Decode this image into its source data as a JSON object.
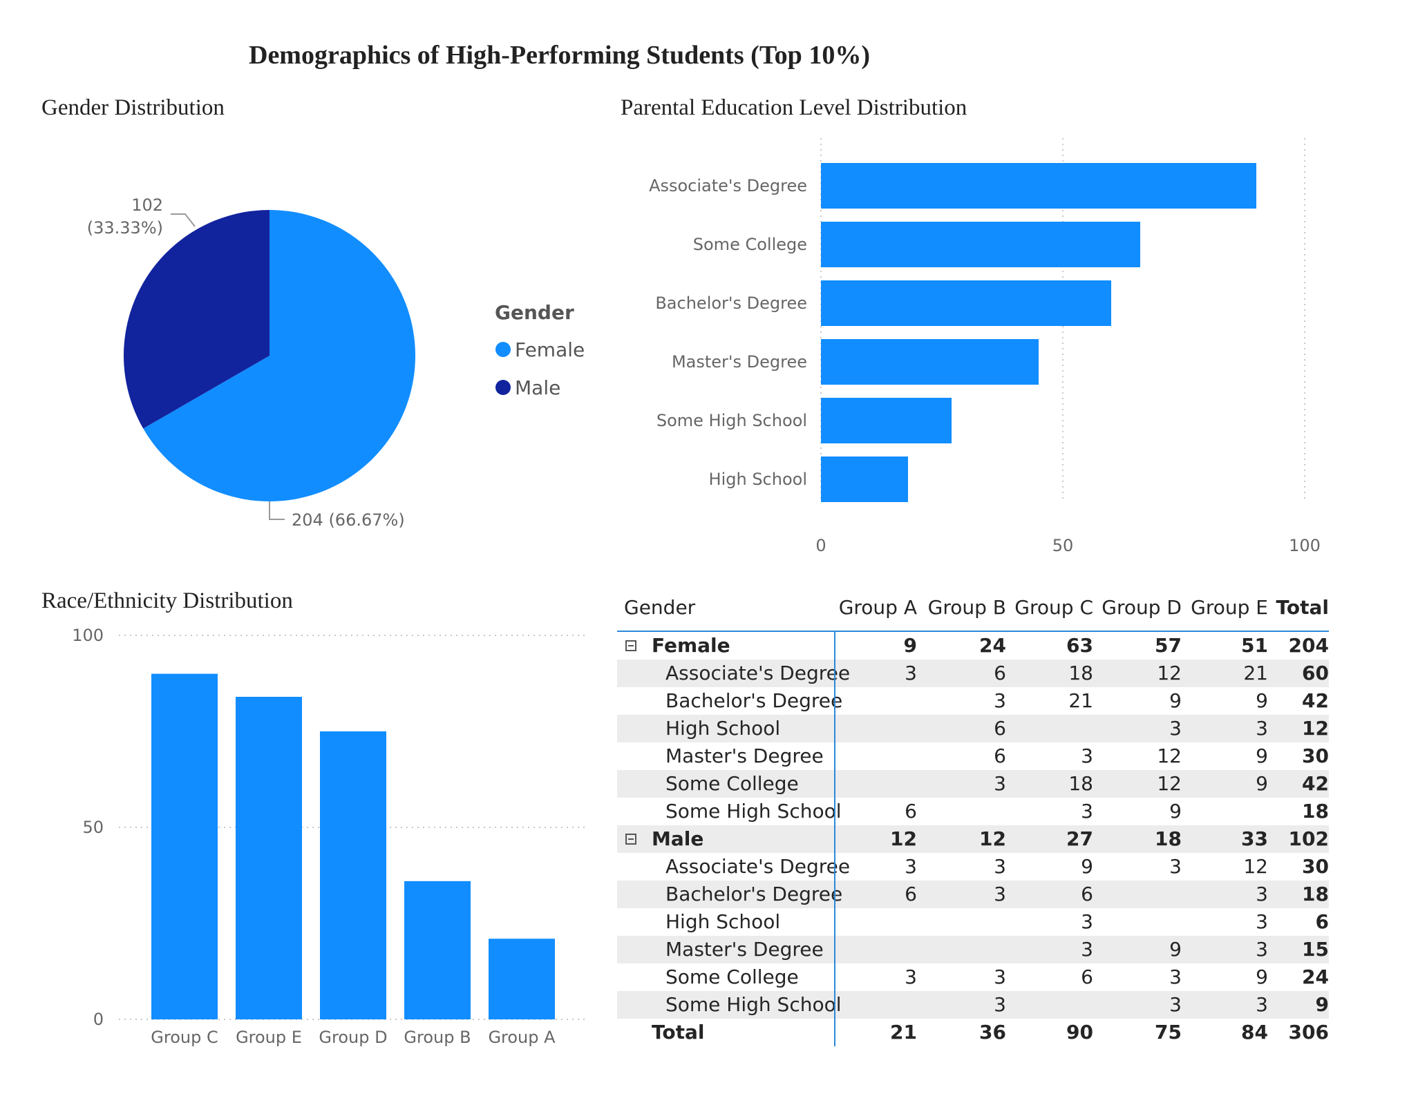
{
  "title": "Demographics of High-Performing Students (Top 10%)",
  "panels": {
    "gender": "Gender Distribution",
    "parental": "Parental Education Level Distribution",
    "race": "Race/Ethnicity Distribution"
  },
  "colors": {
    "female": "#118dff",
    "male": "#12239e",
    "bar": "#118dff",
    "axis_text": "#666666",
    "grid": "#c8c8c8",
    "accent": "#2b88d8"
  },
  "pie": {
    "legend_title": "Gender",
    "legend_items": [
      "Female",
      "Male"
    ],
    "label_male_1": "102",
    "label_male_2": "(33.33%)",
    "label_female": "204 (66.67%)"
  },
  "chart_data": [
    {
      "type": "pie",
      "title": "Gender Distribution",
      "legend_title": "Gender",
      "slices": [
        {
          "label": "Female",
          "value": 204,
          "percent": 66.67
        },
        {
          "label": "Male",
          "value": 102,
          "percent": 33.33
        }
      ]
    },
    {
      "type": "bar",
      "orientation": "horizontal",
      "title": "Parental Education Level Distribution",
      "categories": [
        "Associate's Degree",
        "Some College",
        "Bachelor's Degree",
        "Master's Degree",
        "Some High School",
        "High School"
      ],
      "values": [
        90,
        66,
        60,
        45,
        27,
        18
      ],
      "xlim": [
        0,
        100
      ],
      "xticks": [
        "0",
        "50",
        "100"
      ],
      "grid": true
    },
    {
      "type": "bar",
      "title": "Race/Ethnicity Distribution",
      "categories": [
        "Group C",
        "Group E",
        "Group D",
        "Group B",
        "Group A"
      ],
      "values": [
        90,
        84,
        75,
        36,
        21
      ],
      "ylim": [
        0,
        100
      ],
      "yticks": [
        "0",
        "50",
        "100"
      ],
      "grid": true
    },
    {
      "type": "table",
      "columns": [
        "Gender",
        "Group A",
        "Group B",
        "Group C",
        "Group D",
        "Group E",
        "Total"
      ],
      "rows": [
        {
          "level": 0,
          "label": "Female",
          "values": [
            "9",
            "24",
            "63",
            "57",
            "51",
            "204"
          ]
        },
        {
          "level": 1,
          "label": "Associate's Degree",
          "values": [
            "3",
            "6",
            "18",
            "12",
            "21",
            "60"
          ]
        },
        {
          "level": 1,
          "label": "Bachelor's Degree",
          "values": [
            "",
            "3",
            "21",
            "9",
            "9",
            "42"
          ]
        },
        {
          "level": 1,
          "label": "High School",
          "values": [
            "",
            "6",
            "",
            "3",
            "3",
            "12"
          ]
        },
        {
          "level": 1,
          "label": "Master's Degree",
          "values": [
            "",
            "6",
            "3",
            "12",
            "9",
            "30"
          ]
        },
        {
          "level": 1,
          "label": "Some College",
          "values": [
            "",
            "3",
            "18",
            "12",
            "9",
            "42"
          ]
        },
        {
          "level": 1,
          "label": "Some High School",
          "values": [
            "6",
            "",
            "3",
            "9",
            "",
            "18"
          ]
        },
        {
          "level": 0,
          "label": "Male",
          "values": [
            "12",
            "12",
            "27",
            "18",
            "33",
            "102"
          ]
        },
        {
          "level": 1,
          "label": "Associate's Degree",
          "values": [
            "3",
            "3",
            "9",
            "3",
            "12",
            "30"
          ]
        },
        {
          "level": 1,
          "label": "Bachelor's Degree",
          "values": [
            "6",
            "3",
            "6",
            "",
            "3",
            "18"
          ]
        },
        {
          "level": 1,
          "label": "High School",
          "values": [
            "",
            "",
            "3",
            "",
            "3",
            "6"
          ]
        },
        {
          "level": 1,
          "label": "Master's Degree",
          "values": [
            "",
            "",
            "3",
            "9",
            "3",
            "15"
          ]
        },
        {
          "level": 1,
          "label": "Some College",
          "values": [
            "3",
            "3",
            "6",
            "3",
            "9",
            "24"
          ]
        },
        {
          "level": 1,
          "label": "Some High School",
          "values": [
            "",
            "3",
            "",
            "3",
            "3",
            "9"
          ]
        }
      ],
      "total": {
        "label": "Total",
        "values": [
          "21",
          "36",
          "90",
          "75",
          "84",
          "306"
        ]
      }
    }
  ]
}
